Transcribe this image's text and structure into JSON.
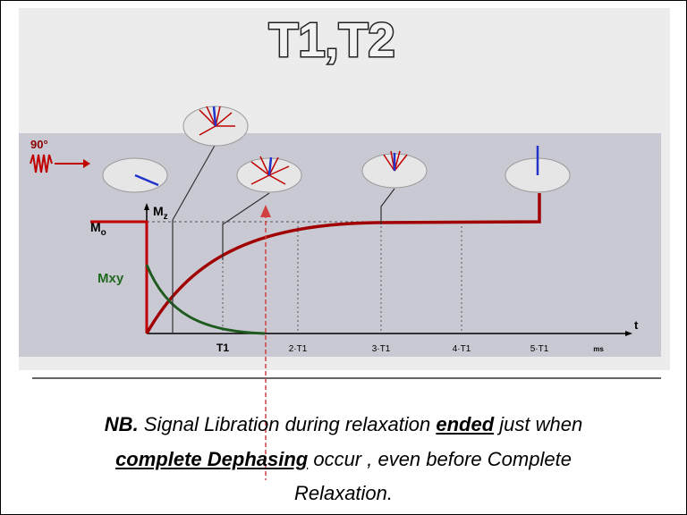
{
  "title": "T1,T2",
  "diagram": {
    "pulse_label": "90°",
    "m0_label": {
      "main": "M",
      "sub": "o"
    },
    "mz_label": {
      "main": "M",
      "sub": "z"
    },
    "mxy_label": "Mxy",
    "axis_label": "t",
    "unit_label": "ms",
    "ticks": [
      "T1",
      "2·T1",
      "3·T1",
      "4·T1",
      "5·T1"
    ]
  },
  "caption": {
    "parts": [
      "NB.",
      " Signal Libration during relaxation ",
      "ended",
      " just when",
      "complete Dephasing",
      " occur , even before Complete",
      "Relaxation."
    ]
  }
}
